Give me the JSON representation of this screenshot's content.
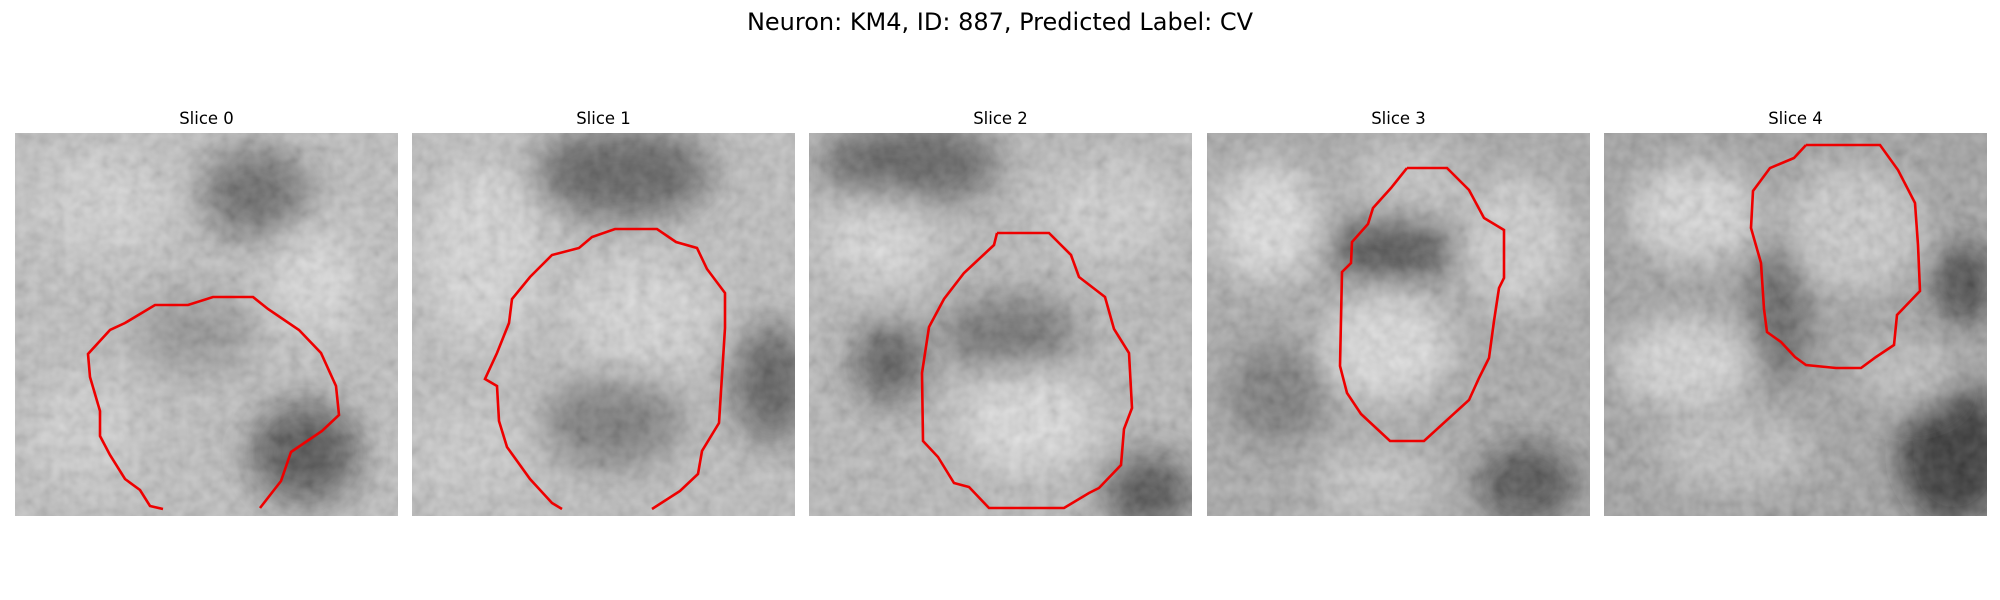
{
  "figure": {
    "title": "Neuron: KM4, ID: 887, Predicted Label: CV"
  },
  "panels": [
    {
      "title": "Slice 0"
    },
    {
      "title": "Slice 1"
    },
    {
      "title": "Slice 2"
    },
    {
      "title": "Slice 3"
    },
    {
      "title": "Slice 4"
    }
  ],
  "colors": {
    "contour": "#ee0000",
    "background": "#ffffff"
  }
}
